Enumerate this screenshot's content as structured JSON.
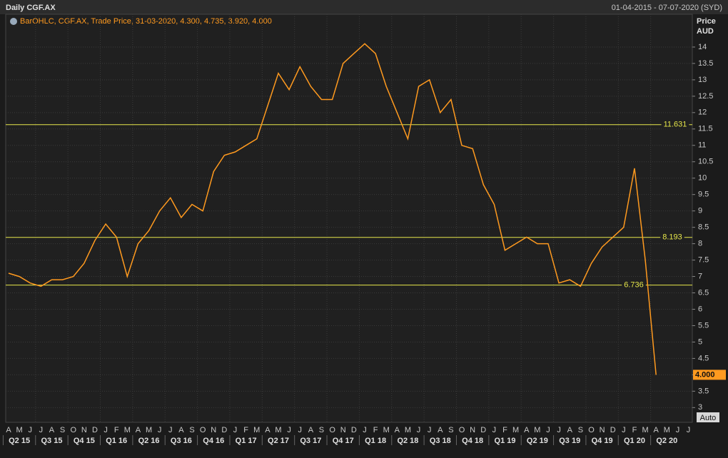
{
  "chart_data": {
    "type": "line",
    "title": "Daily CGF.AX",
    "date_range": "01-04-2015 - 07-07-2020 (SYD)",
    "legend_text": "BarOHLC, CGF.AX, Trade Price, 31-03-2020, 4.300, 4.735, 3.920, 4.000",
    "y_axis_label": "Price",
    "y_axis_unit": "AUD",
    "auto_button": "Auto",
    "categories": [
      "A",
      "M",
      "J",
      "J",
      "A",
      "S",
      "O",
      "N",
      "D",
      "J",
      "F",
      "M",
      "A",
      "M",
      "J",
      "J",
      "A",
      "S",
      "O",
      "N",
      "D",
      "J",
      "F",
      "M",
      "A",
      "M",
      "J",
      "J",
      "A",
      "S",
      "O",
      "N",
      "D",
      "J",
      "F",
      "M",
      "A",
      "M",
      "J",
      "J",
      "A",
      "S",
      "O",
      "N",
      "D",
      "J",
      "F",
      "M",
      "A",
      "M",
      "J",
      "J",
      "A",
      "S",
      "O",
      "N",
      "D",
      "J",
      "F",
      "M",
      "A",
      "M",
      "J",
      "J"
    ],
    "quarters": [
      "Q2 15",
      "Q3 15",
      "Q4 15",
      "Q1 16",
      "Q2 16",
      "Q3 16",
      "Q4 16",
      "Q1 17",
      "Q2 17",
      "Q3 17",
      "Q4 17",
      "Q1 18",
      "Q2 18",
      "Q3 18",
      "Q4 18",
      "Q1 19",
      "Q2 19",
      "Q3 19",
      "Q4 19",
      "Q1 20",
      "Q2 20"
    ],
    "series": [
      {
        "name": "CGF.AX",
        "color": "#ff9a1f",
        "values": [
          7.1,
          7.0,
          6.8,
          6.7,
          6.9,
          6.9,
          7.0,
          7.4,
          8.1,
          8.6,
          8.2,
          7.0,
          8.0,
          8.4,
          9.0,
          9.4,
          8.8,
          9.2,
          9.0,
          10.2,
          10.7,
          10.8,
          11.0,
          11.2,
          12.2,
          13.2,
          12.7,
          13.4,
          12.8,
          12.4,
          12.4,
          13.5,
          13.8,
          14.1,
          13.8,
          12.8,
          12.0,
          11.2,
          12.8,
          13.0,
          12.0,
          12.4,
          11.0,
          10.9,
          9.8,
          9.2,
          7.8,
          8.0,
          8.2,
          8.0,
          8.0,
          6.8,
          6.9,
          6.7,
          7.4,
          7.9,
          8.2,
          8.5,
          10.3,
          7.5,
          4.0,
          null,
          null,
          null
        ]
      }
    ],
    "hlines": [
      11.631,
      8.193,
      6.736
    ],
    "hline_color": "#e6e64a",
    "last_price": {
      "value": 4,
      "label": "4.000"
    },
    "ylim": [
      2.55,
      15.0
    ],
    "yticks": [
      3,
      3.5,
      4,
      4.5,
      5,
      5.5,
      6,
      6.5,
      7,
      7.5,
      8,
      8.5,
      9,
      9.5,
      10,
      10.5,
      11,
      11.5,
      12,
      12.5,
      13,
      13.5,
      14
    ],
    "grid": true
  }
}
